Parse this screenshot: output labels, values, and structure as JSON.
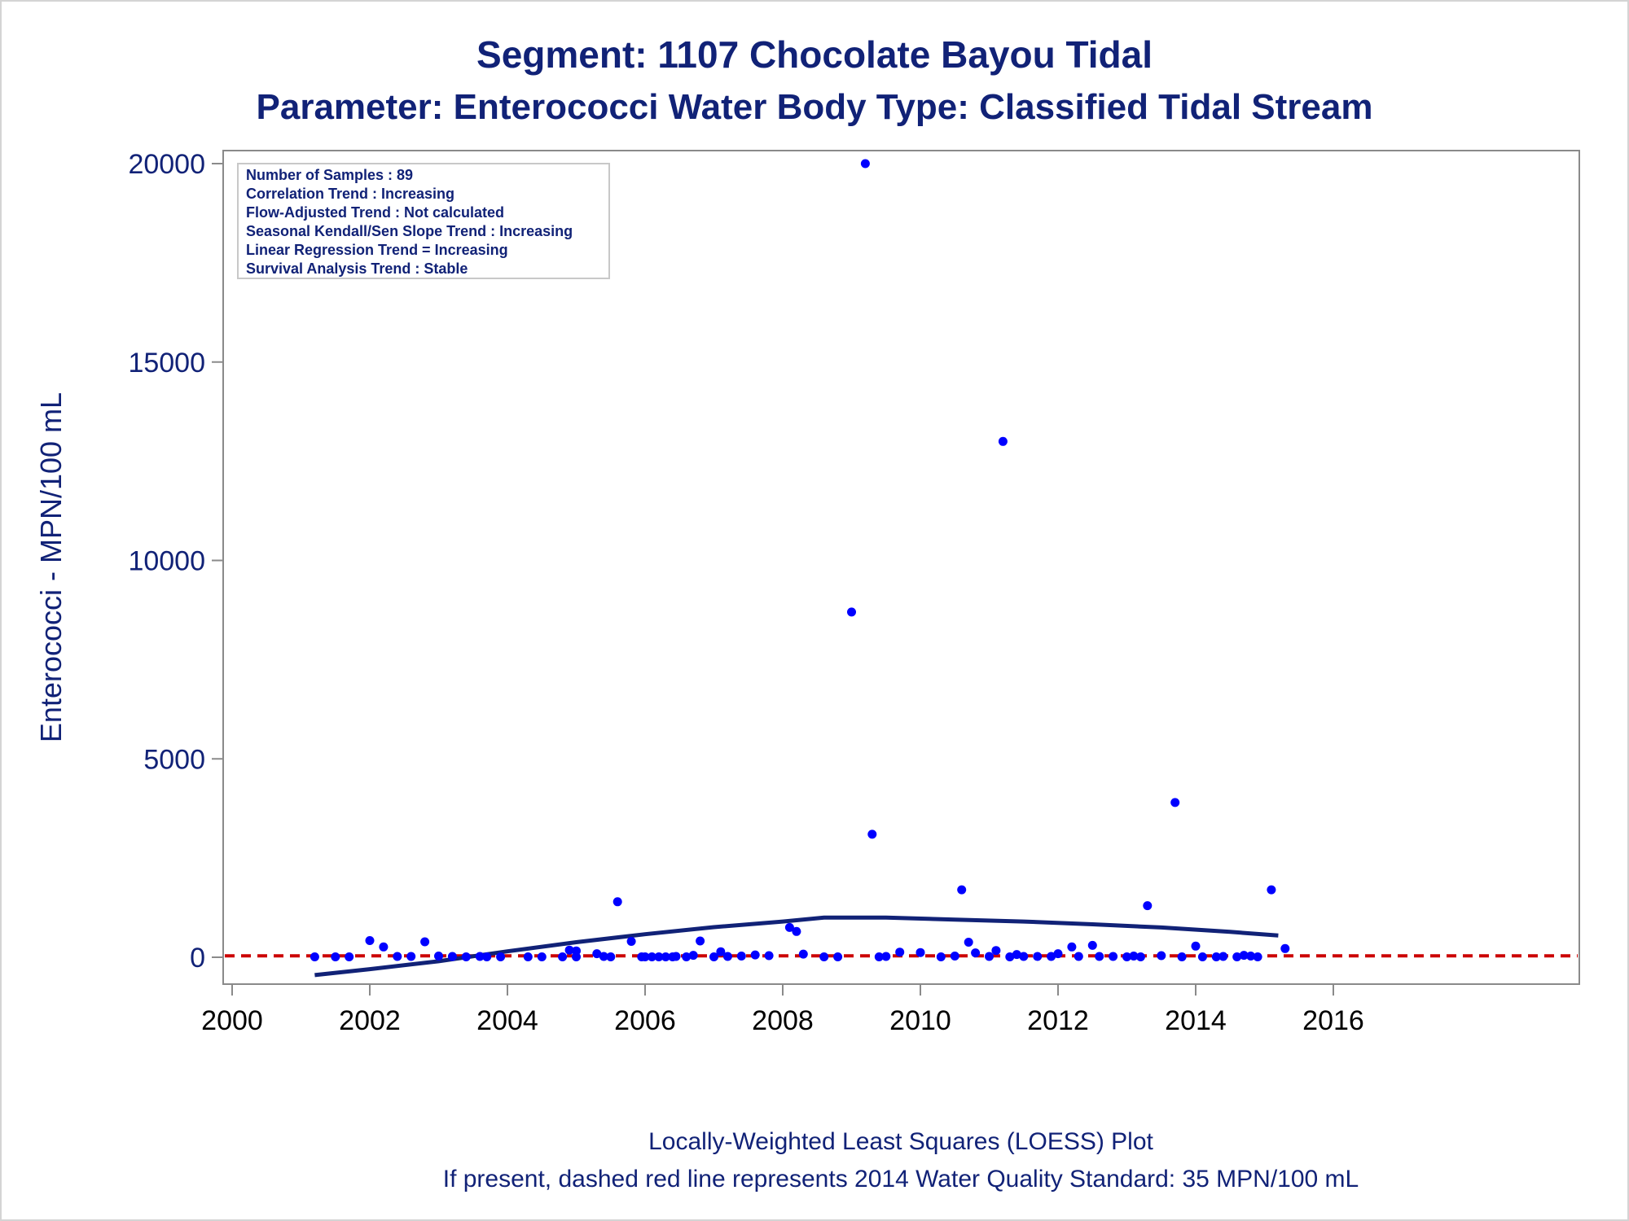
{
  "chart_data": {
    "type": "scatter",
    "title": "Segment: 1107  Chocolate Bayou Tidal",
    "subtitle": "Parameter: Enterococci   Water Body Type: Classified Tidal Stream",
    "xlabel": "",
    "ylabel": "Enterococci - MPN/100 mL",
    "footnotes": [
      "Locally-Weighted Least Squares (LOESS) Plot",
      "If present, dashed red line represents 2014 Water Quality Standard: 35 MPN/100 mL"
    ],
    "stats_box": [
      "Number of Samples : 89",
      "Correlation Trend : Increasing",
      "Flow-Adjusted Trend : Not calculated",
      "Seasonal Kendall/Sen Slope Trend : Increasing",
      "Linear Regression Trend = Increasing",
      "Survival Analysis Trend : Stable"
    ],
    "xlim": [
      2000,
      2016
    ],
    "ylim": [
      -700,
      20400
    ],
    "x_ticks": [
      2000,
      2002,
      2004,
      2006,
      2008,
      2010,
      2012,
      2014,
      2016
    ],
    "y_ticks": [
      0,
      5000,
      10000,
      15000,
      20000
    ],
    "x_tick_labels": [
      "2000",
      "2002",
      "2004",
      "2006",
      "2008",
      "2010",
      "2012",
      "2014",
      "2016"
    ],
    "y_tick_labels": [
      "0",
      "5000",
      "10000",
      "15000",
      "20000"
    ],
    "standard": 35,
    "colors": {
      "points": "#0000ff",
      "loess": "#112277",
      "standard": "#cc0000",
      "axis": "#8a8a8a",
      "text": "#112277"
    },
    "points": [
      [
        2001.2,
        10
      ],
      [
        2001.5,
        10
      ],
      [
        2001.7,
        10
      ],
      [
        2002.0,
        420
      ],
      [
        2002.2,
        260
      ],
      [
        2002.4,
        20
      ],
      [
        2002.6,
        20
      ],
      [
        2002.8,
        390
      ],
      [
        2003.0,
        30
      ],
      [
        2003.2,
        20
      ],
      [
        2003.4,
        10
      ],
      [
        2003.6,
        20
      ],
      [
        2003.7,
        10
      ],
      [
        2003.9,
        10
      ],
      [
        2004.3,
        10
      ],
      [
        2004.5,
        10
      ],
      [
        2004.8,
        10
      ],
      [
        2004.9,
        180
      ],
      [
        2005.0,
        10
      ],
      [
        2005.0,
        160
      ],
      [
        2005.3,
        90
      ],
      [
        2005.4,
        20
      ],
      [
        2005.5,
        10
      ],
      [
        2005.6,
        1400
      ],
      [
        2005.8,
        400
      ],
      [
        2005.95,
        10
      ],
      [
        2006.0,
        10
      ],
      [
        2006.1,
        10
      ],
      [
        2006.2,
        10
      ],
      [
        2006.3,
        10
      ],
      [
        2006.4,
        10
      ],
      [
        2006.45,
        20
      ],
      [
        2006.6,
        10
      ],
      [
        2006.7,
        50
      ],
      [
        2006.8,
        410
      ],
      [
        2007.0,
        10
      ],
      [
        2007.1,
        140
      ],
      [
        2007.2,
        20
      ],
      [
        2007.4,
        30
      ],
      [
        2007.6,
        60
      ],
      [
        2007.8,
        40
      ],
      [
        2008.1,
        750
      ],
      [
        2008.2,
        650
      ],
      [
        2008.3,
        80
      ],
      [
        2008.6,
        10
      ],
      [
        2008.8,
        10
      ],
      [
        2009.0,
        8700
      ],
      [
        2009.2,
        20000
      ],
      [
        2009.3,
        3100
      ],
      [
        2009.4,
        10
      ],
      [
        2009.5,
        20
      ],
      [
        2009.7,
        130
      ],
      [
        2010.0,
        120
      ],
      [
        2010.3,
        10
      ],
      [
        2010.5,
        30
      ],
      [
        2010.6,
        1700
      ],
      [
        2010.7,
        380
      ],
      [
        2010.8,
        110
      ],
      [
        2011.0,
        20
      ],
      [
        2011.1,
        170
      ],
      [
        2011.2,
        13000
      ],
      [
        2011.3,
        10
      ],
      [
        2011.4,
        70
      ],
      [
        2011.5,
        20
      ],
      [
        2011.7,
        20
      ],
      [
        2011.9,
        20
      ],
      [
        2012.0,
        90
      ],
      [
        2012.2,
        260
      ],
      [
        2012.3,
        20
      ],
      [
        2012.5,
        300
      ],
      [
        2012.6,
        20
      ],
      [
        2012.8,
        20
      ],
      [
        2013.0,
        10
      ],
      [
        2013.1,
        30
      ],
      [
        2013.2,
        10
      ],
      [
        2013.3,
        1300
      ],
      [
        2013.5,
        40
      ],
      [
        2013.7,
        3900
      ],
      [
        2013.8,
        10
      ],
      [
        2014.0,
        280
      ],
      [
        2014.1,
        10
      ],
      [
        2014.3,
        10
      ],
      [
        2014.4,
        20
      ],
      [
        2014.6,
        10
      ],
      [
        2014.7,
        50
      ],
      [
        2014.8,
        30
      ],
      [
        2014.9,
        10
      ],
      [
        2015.1,
        1700
      ],
      [
        2015.3,
        220
      ]
    ],
    "loess": [
      [
        2001.2,
        -450
      ],
      [
        2002.0,
        -300
      ],
      [
        2003.0,
        -100
      ],
      [
        2004.0,
        150
      ],
      [
        2005.0,
        380
      ],
      [
        2006.0,
        580
      ],
      [
        2007.0,
        760
      ],
      [
        2008.0,
        900
      ],
      [
        2008.6,
        1000
      ],
      [
        2009.5,
        1000
      ],
      [
        2010.5,
        950
      ],
      [
        2011.5,
        900
      ],
      [
        2012.5,
        830
      ],
      [
        2013.5,
        750
      ],
      [
        2014.5,
        640
      ],
      [
        2015.2,
        550
      ]
    ]
  }
}
